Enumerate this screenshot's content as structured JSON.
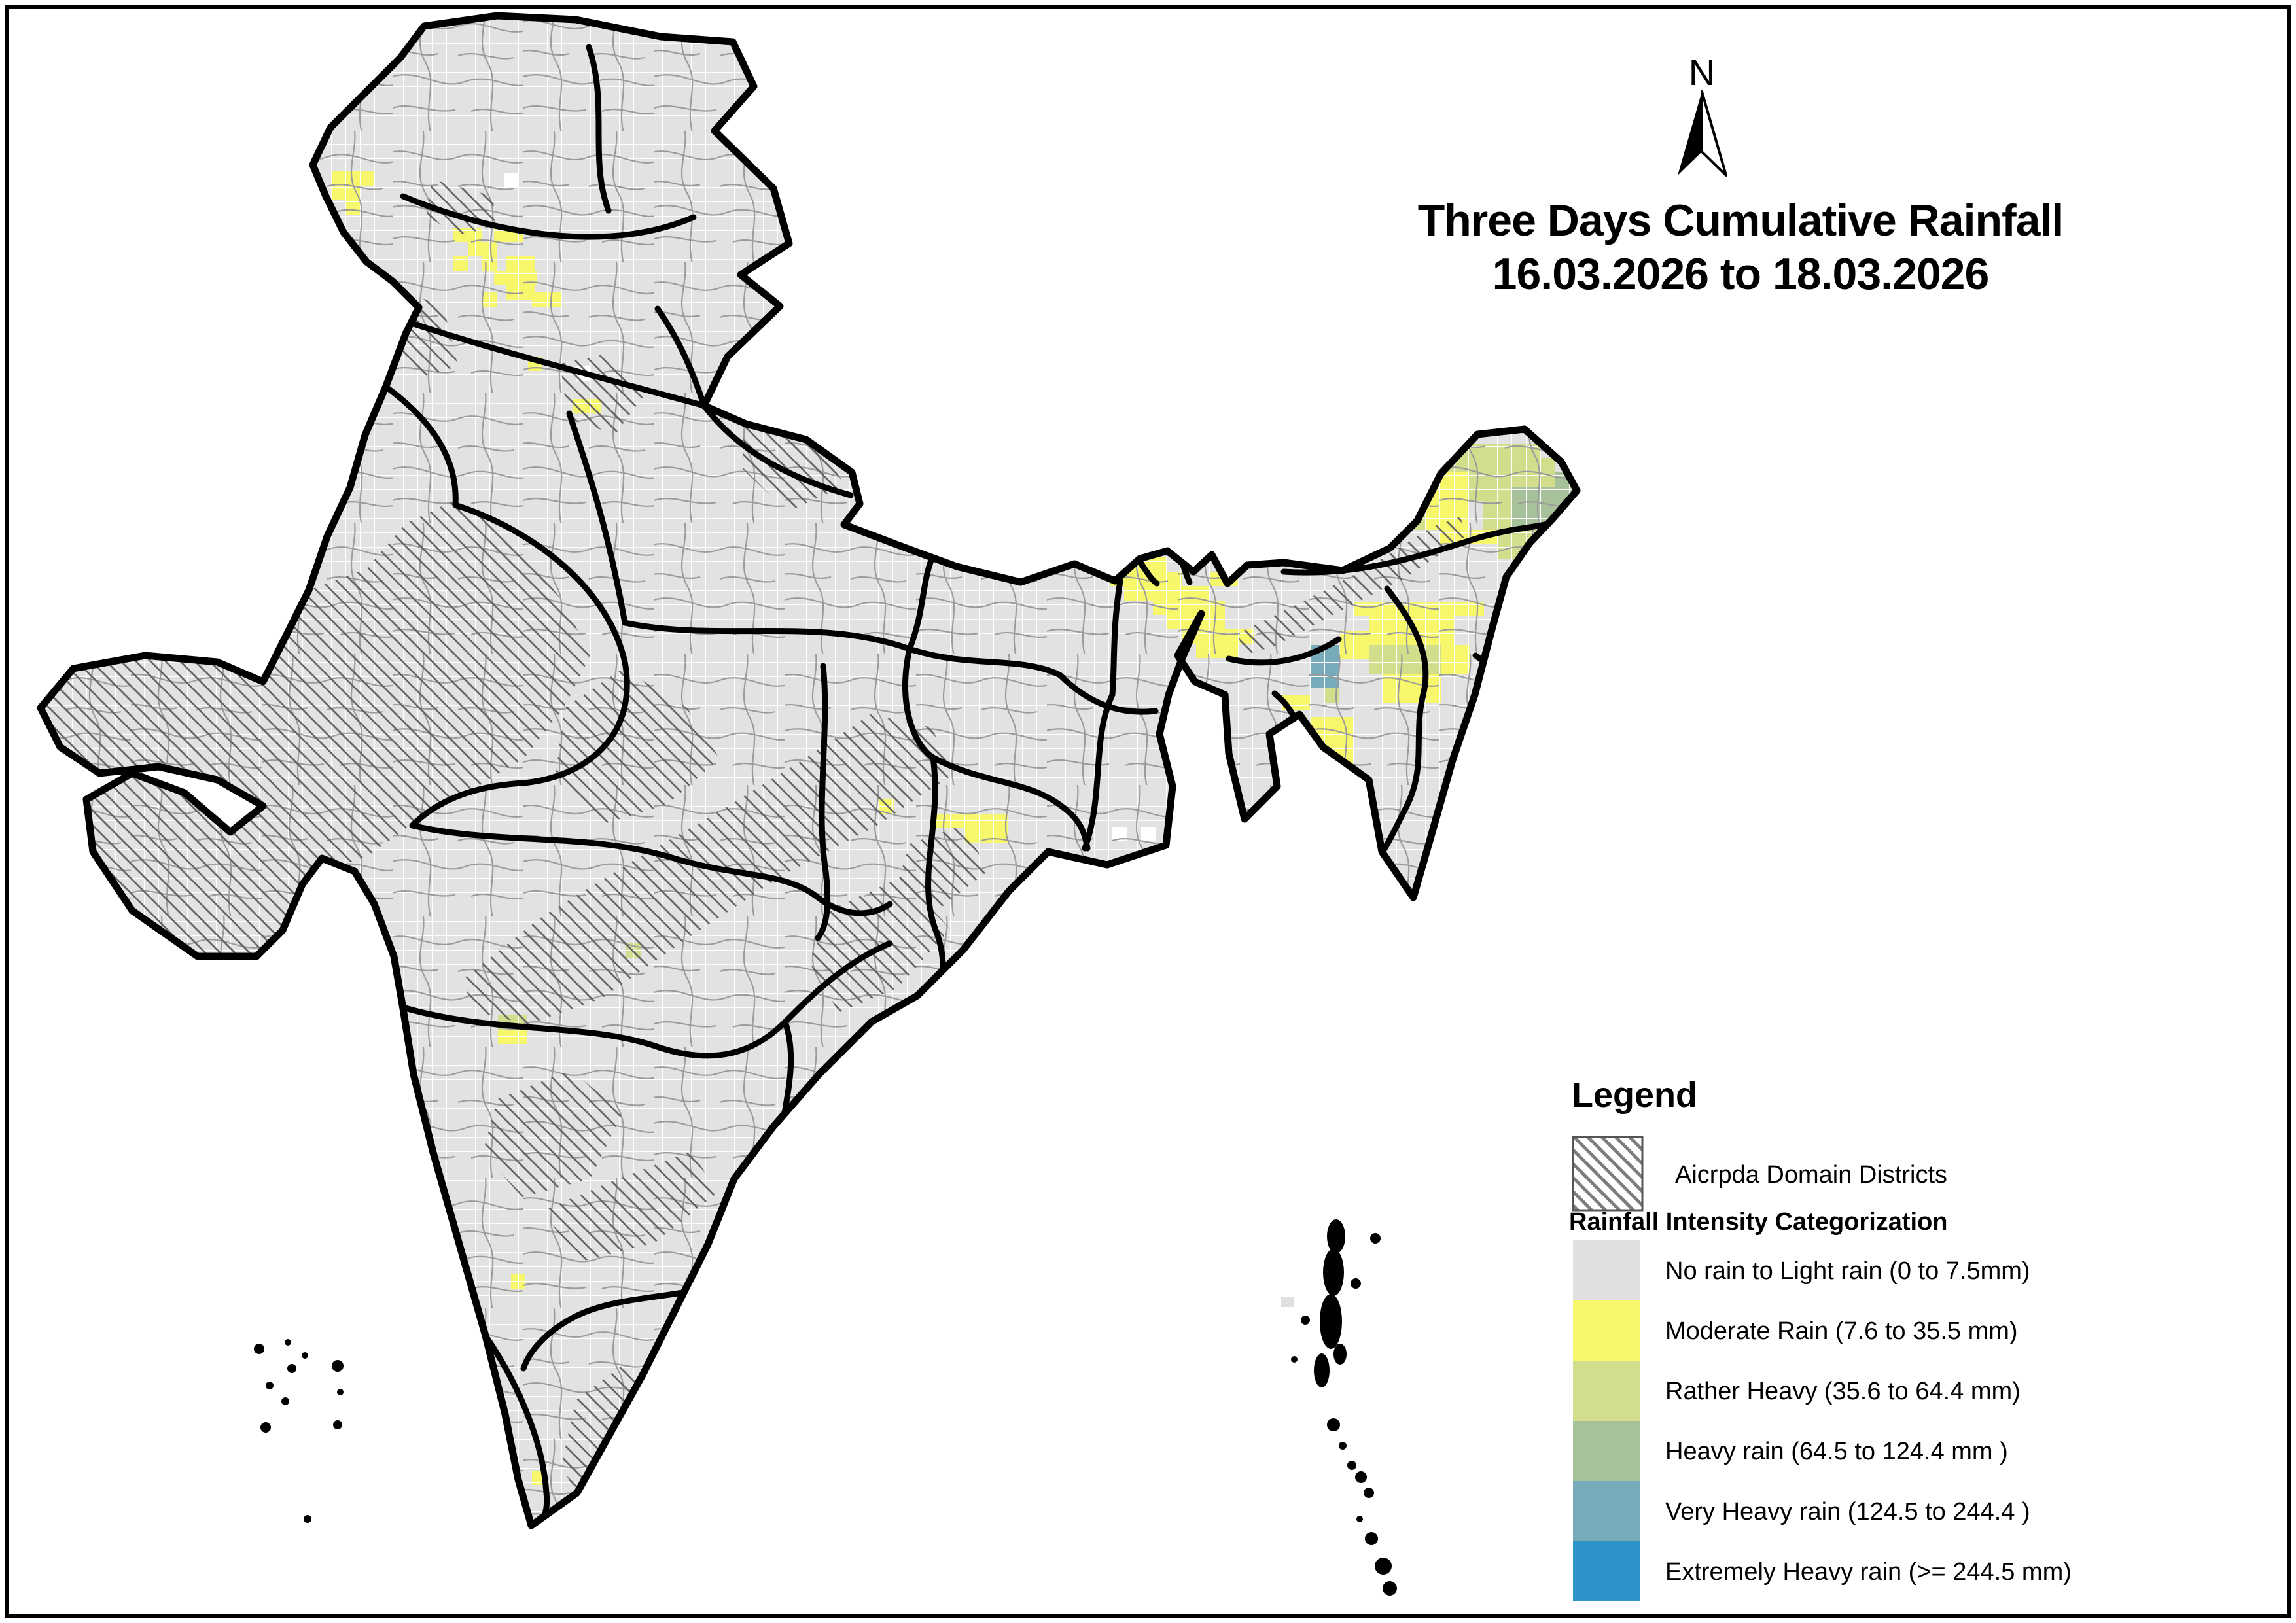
{
  "title": {
    "line1": "Three Days Cumulative Rainfall",
    "line2": "16.03.2026 to 18.03.2026"
  },
  "north_arrow": {
    "label": "N"
  },
  "legend": {
    "heading": "Legend",
    "domain_districts_label": "Aicrpda Domain Districts",
    "section_heading": "Rainfall Intensity Categorization",
    "items": [
      {
        "label": "No rain to Light rain (0 to 7.5mm)",
        "color": "#e0e0e0"
      },
      {
        "label": "Moderate Rain (7.6 to 35.5 mm)",
        "color": "#f6f76a"
      },
      {
        "label": "Rather Heavy (35.6 to 64.4 mm)",
        "color": "#d3de8c"
      },
      {
        "label": "Heavy rain (64.5 to 124.4 mm )",
        "color": "#a7c29b"
      },
      {
        "label": "Very Heavy rain (124.5 to 244.4 )",
        "color": "#77abb9"
      },
      {
        "label": "Extremely Heavy rain  (>= 244.5 mm)",
        "color": "#2b93c8"
      }
    ]
  },
  "map": {
    "base_fill": "#e2e2e2",
    "grid_line_color": "#ffffff",
    "district_line_color": "#9b9b9b",
    "state_border_color": "#000000",
    "rainfall_cells": [
      [
        506,
        262,
        66,
        22,
        1
      ],
      [
        506,
        284,
        44,
        22,
        1
      ],
      [
        484,
        306,
        22,
        22,
        1
      ],
      [
        528,
        306,
        22,
        22,
        1
      ],
      [
        693,
        348,
        44,
        22,
        1
      ],
      [
        755,
        348,
        44,
        22,
        1
      ],
      [
        715,
        370,
        44,
        22,
        1
      ],
      [
        693,
        392,
        22,
        22,
        1
      ],
      [
        737,
        392,
        22,
        22,
        1
      ],
      [
        773,
        392,
        44,
        22,
        1
      ],
      [
        755,
        414,
        66,
        22,
        1
      ],
      [
        773,
        436,
        44,
        22,
        1
      ],
      [
        737,
        447,
        22,
        22,
        1
      ],
      [
        813,
        447,
        44,
        22,
        1
      ],
      [
        807,
        545,
        22,
        22,
        1
      ],
      [
        875,
        610,
        44,
        22,
        1
      ],
      [
        1674,
        830,
        66,
        22,
        1
      ],
      [
        1674,
        852,
        110,
        22,
        1
      ],
      [
        1696,
        874,
        110,
        22,
        1
      ],
      [
        1718,
        896,
        132,
        22,
        1
      ],
      [
        1762,
        918,
        110,
        22,
        1
      ],
      [
        1784,
        940,
        88,
        22,
        1
      ],
      [
        1806,
        962,
        110,
        22,
        1
      ],
      [
        1828,
        984,
        66,
        22,
        1
      ],
      [
        1850,
        874,
        44,
        22,
        1
      ],
      [
        2112,
        656,
        66,
        22,
        1
      ],
      [
        2134,
        634,
        44,
        22,
        1
      ],
      [
        2134,
        678,
        132,
        44,
        2
      ],
      [
        2112,
        700,
        44,
        44,
        2
      ],
      [
        2266,
        678,
        88,
        44,
        2
      ],
      [
        2156,
        722,
        88,
        44,
        1
      ],
      [
        2244,
        722,
        66,
        44,
        2
      ],
      [
        2310,
        700,
        66,
        44,
        2
      ],
      [
        2310,
        744,
        88,
        66,
        3
      ],
      [
        2398,
        744,
        44,
        44,
        3
      ],
      [
        2266,
        766,
        44,
        44,
        2
      ],
      [
        2178,
        766,
        66,
        44,
        1
      ],
      [
        2156,
        766,
        22,
        44,
        2
      ],
      [
        2200,
        810,
        88,
        22,
        1
      ],
      [
        2288,
        810,
        66,
        44,
        2
      ],
      [
        2354,
        810,
        66,
        44,
        3
      ],
      [
        2376,
        722,
        44,
        22,
        3
      ],
      [
        2070,
        920,
        132,
        22,
        1
      ],
      [
        2202,
        920,
        66,
        22,
        1
      ],
      [
        2092,
        942,
        110,
        44,
        1
      ],
      [
        2158,
        942,
        66,
        44,
        1
      ],
      [
        2048,
        964,
        44,
        44,
        1
      ],
      [
        2092,
        986,
        44,
        44,
        2
      ],
      [
        2136,
        986,
        66,
        44,
        2
      ],
      [
        2202,
        986,
        44,
        44,
        1
      ],
      [
        2114,
        1030,
        88,
        44,
        1
      ],
      [
        2002,
        986,
        44,
        66,
        4
      ],
      [
        2024,
        1052,
        22,
        22,
        2
      ],
      [
        2004,
        1096,
        66,
        44,
        1
      ],
      [
        2026,
        1140,
        44,
        66,
        1
      ],
      [
        2004,
        1206,
        44,
        44,
        1
      ],
      [
        2026,
        1250,
        22,
        22,
        1
      ],
      [
        1960,
        1063,
        44,
        22,
        1
      ],
      [
        1982,
        1118,
        22,
        44,
        2
      ],
      [
        1344,
        1222,
        22,
        22,
        1
      ],
      [
        1430,
        1244,
        22,
        22,
        1
      ],
      [
        1452,
        1244,
        88,
        22,
        1
      ],
      [
        1474,
        1266,
        66,
        22,
        1
      ],
      [
        957,
        1442,
        22,
        22,
        2
      ],
      [
        761,
        1552,
        44,
        22,
        2
      ],
      [
        761,
        1574,
        44,
        22,
        1
      ],
      [
        693,
        1948,
        22,
        22,
        1
      ],
      [
        781,
        1948,
        22,
        22,
        1
      ],
      [
        695,
        2124,
        22,
        22,
        1
      ],
      [
        813,
        2248,
        22,
        22,
        1
      ]
    ]
  }
}
